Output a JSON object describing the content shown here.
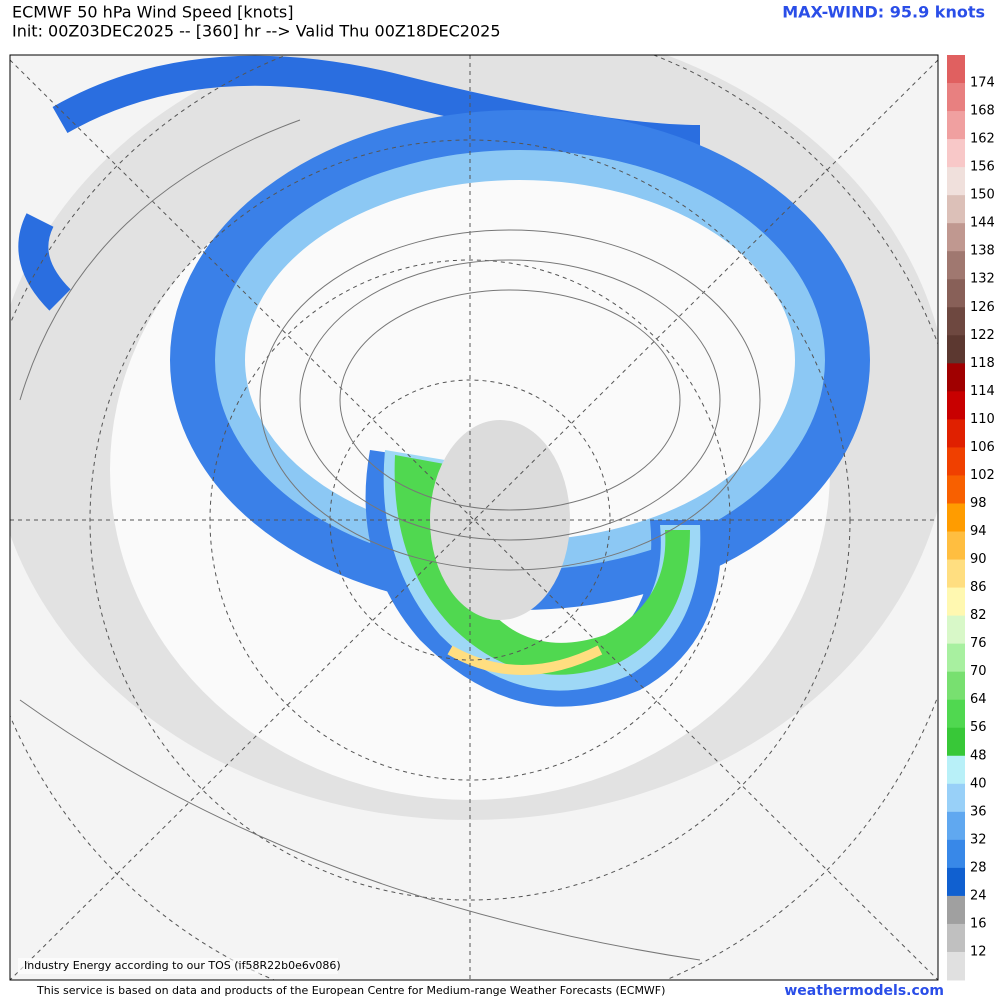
{
  "header": {
    "title": "ECMWF 50 hPa Wind Speed [knots]",
    "subtitle": "Init: 00Z03DEC2025 -- [360] hr --> Valid Thu 00Z18DEC2025",
    "max_wind": "MAX-WIND: 95.9 knots"
  },
  "colorbar": {
    "labels": [
      "174",
      "168",
      "162",
      "156",
      "150",
      "144",
      "138",
      "132",
      "126",
      "122",
      "118",
      "114",
      "110",
      "106",
      "102",
      "98",
      "94",
      "90",
      "86",
      "82",
      "76",
      "70",
      "64",
      "56",
      "48",
      "40",
      "36",
      "32",
      "28",
      "24",
      "16",
      "12"
    ],
    "colors": [
      "#e06060",
      "#e88080",
      "#f0a0a0",
      "#f8c8c8",
      "#f0e0dc",
      "#dcc0b8",
      "#c09890",
      "#a07870",
      "#886058",
      "#6e4840",
      "#5c3830",
      "#a00000",
      "#c80000",
      "#e02000",
      "#f04000",
      "#f86000",
      "#ff9c00",
      "#ffbe40",
      "#ffde80",
      "#fff8b0",
      "#d8f8c8",
      "#a8f0a0",
      "#78e070",
      "#50d850",
      "#38c838",
      "#b8f0f8",
      "#98d0f8",
      "#60a8f0",
      "#3888e8",
      "#1060d0",
      "#a0a0a0",
      "#c0c0c0",
      "#e0e0e0"
    ]
  },
  "map": {
    "watermark": "Industry Energy according to our TOS (if58R22b0e6v086)"
  },
  "footer": {
    "note": "This service is based on data and products of the European Centre for Medium-range Weather Forecasts (ECMWF)",
    "site": "weathermodels.com"
  }
}
